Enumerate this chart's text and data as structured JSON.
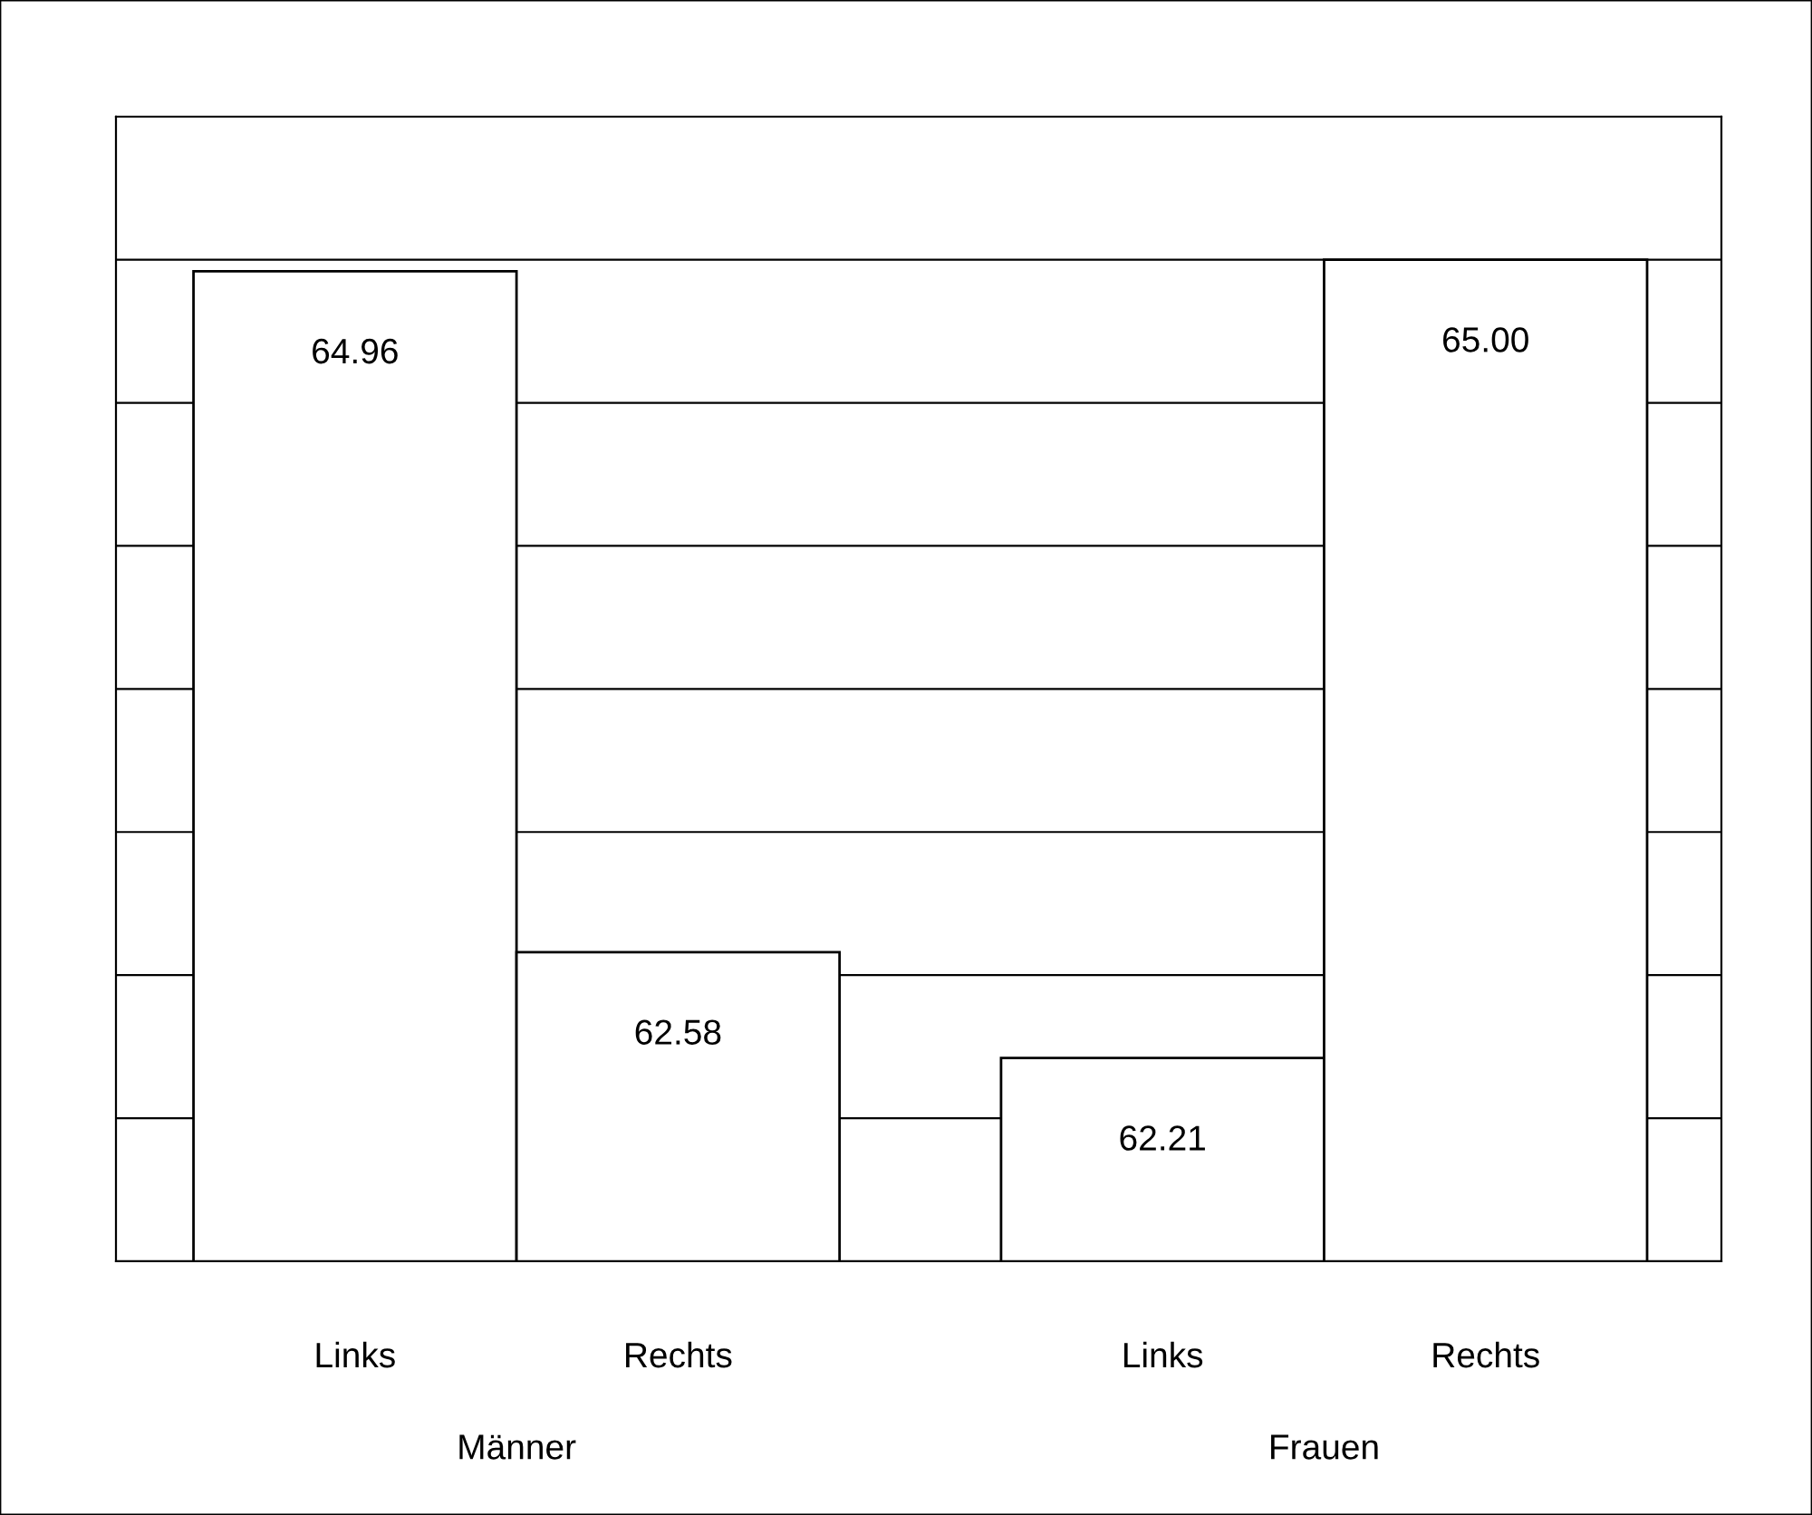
{
  "chart_data": {
    "type": "bar",
    "categories": [
      "Links",
      "Rechts",
      "Links",
      "Rechts"
    ],
    "values": [
      64.96,
      62.58,
      62.21,
      65.0
    ],
    "value_labels": [
      "64.96",
      "62.58",
      "62.21",
      "65.00"
    ],
    "color": "#ffffff",
    "ylim": [
      61.5,
      65.5
    ],
    "yticks": [
      {
        "value": 62,
        "label": null
      },
      {
        "value": 62.5,
        "label": null
      },
      {
        "value": 63,
        "label": null
      },
      {
        "value": 63.5,
        "label": null
      },
      {
        "value": 64,
        "label": null
      },
      {
        "value": 64.5,
        "label": null
      },
      {
        "value": 65,
        "label": null
      }
    ],
    "grid": "y",
    "tick_labels": "x",
    "legend": false,
    "annotations": [
      "Männer",
      "Frauen"
    ]
  }
}
